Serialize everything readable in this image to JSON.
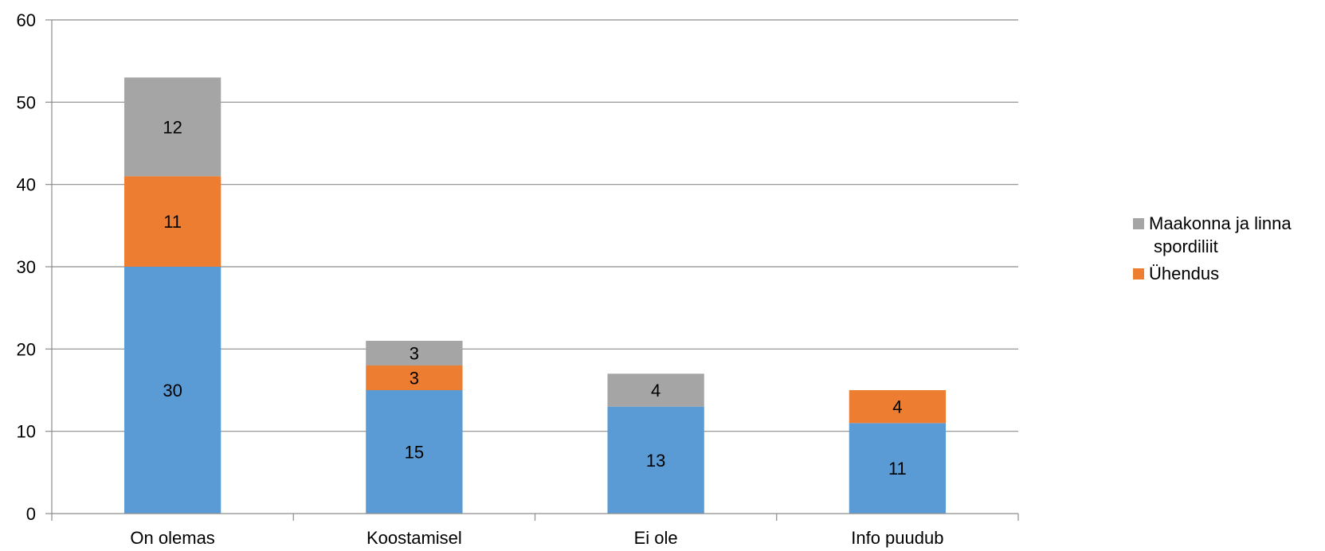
{
  "chart_data": {
    "type": "bar",
    "stacked": true,
    "categories": [
      "On olemas",
      "Koostamisel",
      "Ei ole",
      "Info puudub"
    ],
    "series": [
      {
        "values": [
          30,
          15,
          13,
          11
        ],
        "color": "#5b9bd5"
      },
      {
        "name": "Ühendus",
        "values": [
          11,
          3,
          0,
          4
        ],
        "color": "#ed7d31"
      },
      {
        "name": "Maakonna ja linna spordiliit",
        "values": [
          12,
          3,
          4,
          0
        ],
        "color": "#a5a5a5"
      }
    ],
    "ylim": [
      0,
      60
    ],
    "yticks": [
      0,
      10,
      20,
      30,
      40,
      50,
      60
    ],
    "grid": true,
    "legend": {
      "position": "right",
      "entries": [
        {
          "lines": [
            "Maakonna ja linna",
            "spordiliit"
          ],
          "color": "#a5a5a5"
        },
        {
          "lines": [
            "Ühendus"
          ],
          "color": "#ed7d31"
        }
      ]
    }
  }
}
